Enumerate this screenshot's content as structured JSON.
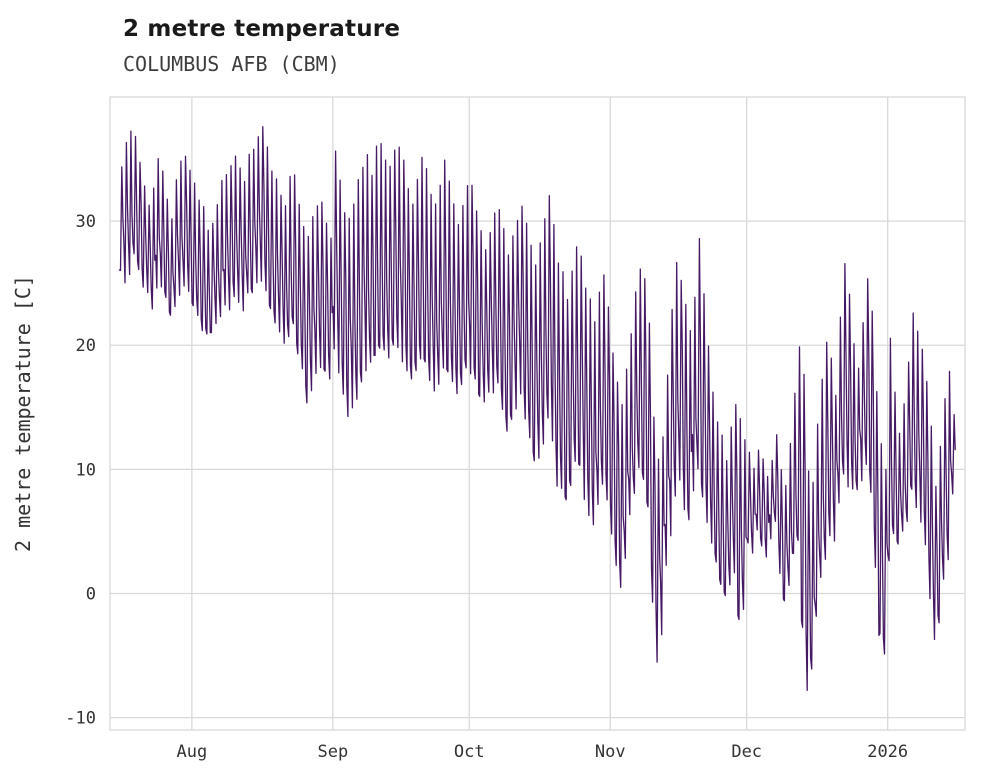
{
  "header": {
    "title": "2 metre temperature",
    "subtitle": "COLUMBUS AFB (CBM)"
  },
  "chart_data": {
    "type": "line",
    "title": "2 metre temperature",
    "subtitle": "COLUMBUS AFB (CBM)",
    "xlabel": "",
    "ylabel": "2 metre temperature [C]",
    "ylim": [
      -11,
      40
    ],
    "yticks": [
      -10,
      0,
      10,
      20,
      30
    ],
    "grid": true,
    "legend": "none",
    "line_color": "#461964",
    "grid_color": "#d9d9d9",
    "x_axis_note": "daily series from mid-July through mid-January",
    "xticks": [
      {
        "label": "Aug",
        "day": 16
      },
      {
        "label": "Sep",
        "day": 47
      },
      {
        "label": "Oct",
        "day": 77
      },
      {
        "label": "Nov",
        "day": 108
      },
      {
        "label": "Dec",
        "day": 138
      },
      {
        "label": "2026",
        "day": 169
      }
    ],
    "days_total": 184,
    "series": [
      {
        "name": "2 metre temperature [C]",
        "daily_max": [
          34,
          36,
          37,
          36.5,
          35,
          33,
          31.5,
          33,
          35,
          34,
          32,
          30.5,
          33,
          34.5,
          35,
          34,
          33,
          32,
          31,
          29.5,
          30,
          31,
          33,
          34,
          34.5,
          35,
          34,
          33.5,
          35,
          35.5,
          36.5,
          37.3,
          36,
          34,
          33,
          32,
          31,
          33.5,
          34,
          31,
          29.5,
          28.5,
          30,
          31.5,
          31.5,
          30,
          29,
          35.3,
          33,
          31,
          30,
          31,
          33,
          34.5,
          35.5,
          34,
          35.8,
          36,
          35,
          34,
          35.5,
          36,
          34.5,
          33,
          31.5,
          33,
          35.5,
          34,
          32,
          31,
          33,
          34.5,
          33,
          31.5,
          30,
          31,
          32.5,
          32.5,
          31,
          29.5,
          28,
          29,
          30.5,
          31,
          29,
          27.5,
          28.5,
          30,
          31,
          29.5,
          28,
          26.5,
          28,
          30.5,
          32,
          30,
          27,
          25.5,
          24,
          26,
          28,
          27.5,
          25,
          23.5,
          22,
          24.5,
          25.5,
          23,
          19.5,
          17,
          15.5,
          18,
          21,
          24,
          26.5,
          25,
          22,
          14,
          10.5,
          13,
          18,
          23,
          26.5,
          25.5,
          23.5,
          21,
          24,
          28.6,
          24,
          20,
          16.5,
          14,
          12.5,
          11,
          13.5,
          15.5,
          14,
          12,
          11,
          10,
          11.5,
          10.5,
          9.5,
          11,
          12.5,
          10,
          8.5,
          12,
          16,
          20,
          18,
          10,
          9,
          14,
          17.5,
          20.2,
          19,
          16,
          22,
          26.4,
          24,
          20,
          18,
          21.5,
          25.6,
          23,
          16,
          12,
          10,
          20.8,
          16,
          13,
          15,
          19,
          22.9,
          21,
          19.8,
          17,
          13.5,
          9,
          12,
          16,
          18.2,
          14
        ],
        "daily_min": [
          26,
          25,
          26,
          27,
          26,
          25,
          24,
          23,
          24.5,
          25,
          24,
          22.5,
          23,
          24,
          25,
          24.5,
          23,
          22,
          21.5,
          20.5,
          21,
          22,
          22,
          23,
          23,
          24,
          23.5,
          23,
          24,
          24,
          25,
          25.5,
          24,
          23,
          22,
          21,
          20,
          21,
          22,
          19,
          18,
          15.5,
          16,
          18,
          18,
          17.5,
          17,
          20,
          18,
          16,
          14,
          15,
          16,
          17,
          18,
          19,
          19,
          20,
          19.5,
          19,
          20,
          20,
          19,
          18,
          17.5,
          18,
          19,
          18.5,
          17,
          16.5,
          17,
          18,
          17.5,
          17,
          16,
          17,
          18,
          18,
          17,
          16,
          15.5,
          16,
          16.5,
          17,
          15,
          13.5,
          14,
          15,
          16,
          14,
          12.5,
          11,
          10.5,
          12,
          14,
          12,
          9,
          8.8,
          7.5,
          9,
          11,
          10,
          8,
          6.5,
          5.5,
          7,
          9,
          7.5,
          5,
          2.5,
          0.8,
          3,
          6,
          8,
          10,
          9,
          7,
          -1,
          -5.2,
          -3,
          2,
          5,
          8,
          9,
          7,
          6,
          8,
          10,
          8,
          6,
          4,
          2.5,
          1,
          -0.5,
          0.5,
          2,
          -2.5,
          -1,
          4,
          3.5,
          5,
          4,
          3,
          4.5,
          6,
          2,
          -1,
          0.5,
          3,
          4,
          -3,
          -8,
          -6,
          -2,
          1,
          3,
          5,
          4,
          7,
          10,
          9,
          8,
          8,
          9,
          10,
          8.5,
          2,
          -3.5,
          -5,
          3,
          5,
          4,
          5,
          6,
          8,
          7,
          6,
          4,
          0,
          -3.5,
          -2,
          1,
          3,
          8
        ]
      }
    ]
  }
}
